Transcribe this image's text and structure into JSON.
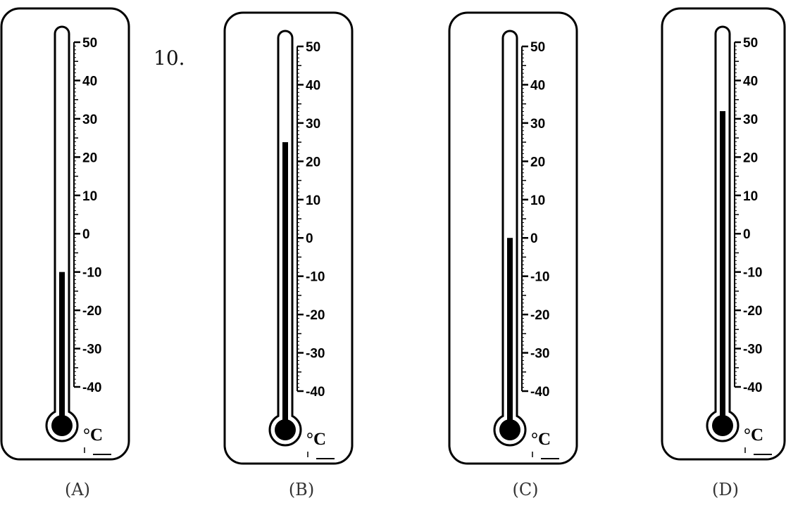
{
  "question": {
    "number": "10."
  },
  "thermometer": {
    "unit": "°C",
    "scale_labels": [
      "50",
      "40",
      "30",
      "20",
      "10",
      "0",
      "-10",
      "-20",
      "-30",
      "-40"
    ]
  },
  "options": [
    {
      "label": "(A)",
      "reading_c": -10
    },
    {
      "label": "(B)",
      "reading_c": 25
    },
    {
      "label": "(C)",
      "reading_c": 0
    },
    {
      "label": "(D)",
      "reading_c": 32
    }
  ]
}
